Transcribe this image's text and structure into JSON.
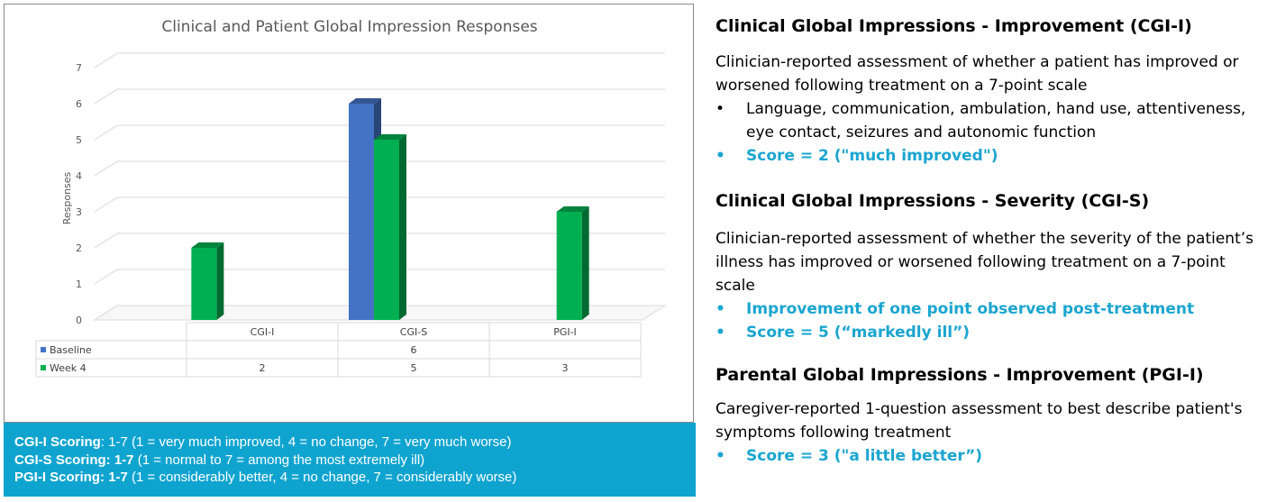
{
  "chart_data": {
    "type": "bar",
    "title": "Clinical and Patient Global Impression Responses",
    "ylabel": "Responses",
    "xlabel": "",
    "ylim": [
      0,
      7
    ],
    "yticks": [
      "0",
      "1",
      "2",
      "3",
      "4",
      "5",
      "6",
      "7"
    ],
    "categories": [
      "CGI-I",
      "CGI-S",
      "PGI-I"
    ],
    "series": [
      {
        "name": "Baseline",
        "values": [
          null,
          6,
          null
        ],
        "color": "#4472c4",
        "table": [
          "",
          "6",
          ""
        ]
      },
      {
        "name": "Week 4",
        "values": [
          2,
          5,
          3
        ],
        "color": "#00b050",
        "table": [
          "2",
          "5",
          "3"
        ]
      }
    ],
    "grid": true,
    "style": "3d-column-with-data-table"
  },
  "scoring": [
    {
      "label": "CGI-I Scoring",
      "range": "1-7",
      "desc": "(1 = very much improved, 4 = no change, 7 = very much worse)"
    },
    {
      "label": "CGI-S Scoring:",
      "range": "1-7",
      "desc": "(1 = normal to 7 = among the most extremely ill)"
    },
    {
      "label": "PGI-I Scoring: ",
      "range": "1-7",
      "desc": "(1 = considerably better, 4 = no change, 7 = considerably worse)"
    }
  ],
  "sections": {
    "cgi_i": {
      "title": "Clinical Global Impressions - Improvement (CGI-I)",
      "desc": "Clinician-reported assessment of whether a patient has improved or worsened following treatment on a 7-point scale",
      "bullets": [
        "Language, communication, ambulation, hand use, attentiveness, eye contact, seizures and autonomic function",
        "Score = 2 (\"much improved\")"
      ]
    },
    "cgi_s": {
      "title": "Clinical Global Impressions - Severity (CGI-S)",
      "desc": "Clinician-reported assessment of whether the severity of the patient’s illness has improved or worsened following treatment on a 7-point scale",
      "bullets": [
        "Improvement of one point observed post-treatment",
        "Score = 5 (“markedly ill”)"
      ]
    },
    "pgi_i": {
      "title": "Parental Global Impressions - Improvement (PGI-I)",
      "desc": "Caregiver-reported 1-question assessment to best describe patient's symptoms following treatment",
      "bullets": [
        "Score = 3 (\"a little better”)"
      ]
    }
  },
  "bullet_char": "•",
  "colors": {
    "accent": "#1aa5d0",
    "scoring_bg": "#0fa4d0"
  }
}
